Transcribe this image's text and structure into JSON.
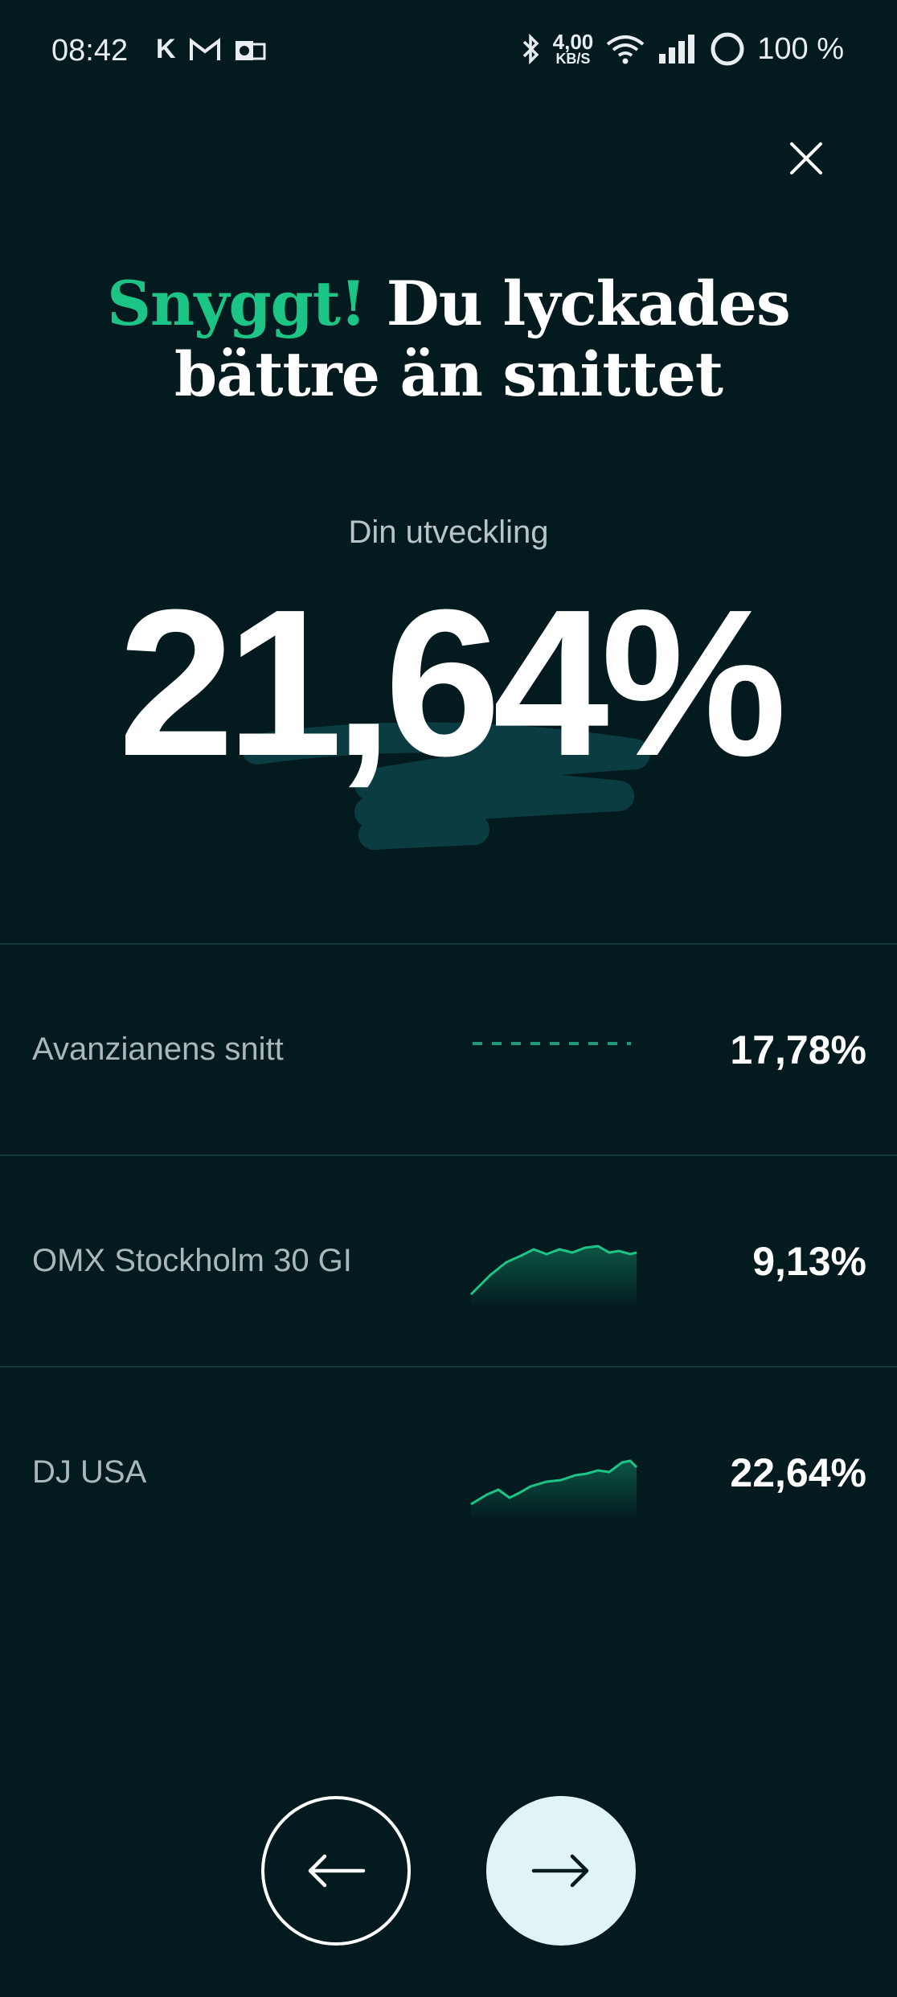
{
  "status_bar": {
    "time": "08:42",
    "app_letter": "K",
    "speed_value": "4,00",
    "speed_unit": "KB/S",
    "battery": "100 %"
  },
  "headline": {
    "accent": "Snyggt!",
    "rest_line1": "Du lyckades",
    "line2": "bättre än snittet"
  },
  "summary": {
    "label": "Din utveckling",
    "value": "21,64%"
  },
  "comparisons": [
    {
      "label": "Avanzianens snitt",
      "value": "17,78%",
      "chart": "dashed"
    },
    {
      "label": "OMX Stockholm 30 GI",
      "value": "9,13%",
      "chart": "line"
    },
    {
      "label": "DJ USA",
      "value": "22,64%",
      "chart": "line"
    }
  ],
  "colors": {
    "background": "#031a1f",
    "accent": "#1cc486",
    "next_button": "#e0f3f6"
  },
  "icons": {
    "close": "close-icon",
    "back": "arrow-left-icon",
    "next": "arrow-right-icon"
  }
}
